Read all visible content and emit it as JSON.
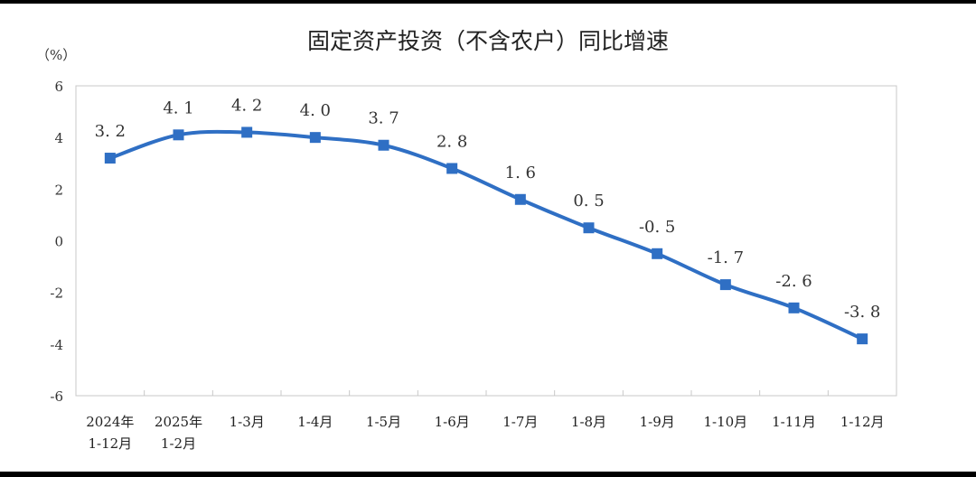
{
  "chart_data": {
    "type": "line",
    "title": "固定资产投资（不含农户）同比增速",
    "unit_label": "（%）",
    "categories": [
      [
        "2024年",
        "1-12月"
      ],
      [
        "2025年",
        "1-2月"
      ],
      [
        "1-3月"
      ],
      [
        "1-4月"
      ],
      [
        "1-5月"
      ],
      [
        "1-6月"
      ],
      [
        "1-7月"
      ],
      [
        "1-8月"
      ],
      [
        "1-9月"
      ],
      [
        "1-10月"
      ],
      [
        "1-11月"
      ],
      [
        "1-12月"
      ]
    ],
    "series": [
      {
        "values": [
          3.2,
          4.1,
          4.2,
          4.0,
          3.7,
          2.8,
          1.6,
          0.5,
          -0.5,
          -1.7,
          -2.6,
          -3.8
        ],
        "labels": [
          "3. 2",
          "4. 1",
          "4. 2",
          "4. 0",
          "3. 7",
          "2. 8",
          "1. 6",
          "0. 5",
          "-0. 5",
          "-1. 7",
          "-2. 6",
          "-3. 8"
        ],
        "color": "#2f6fc4"
      }
    ],
    "yticks": [
      6,
      4,
      2,
      0,
      -2,
      -4,
      -6
    ],
    "ylim": [
      -6,
      6
    ],
    "grid": false,
    "legend": "none"
  }
}
